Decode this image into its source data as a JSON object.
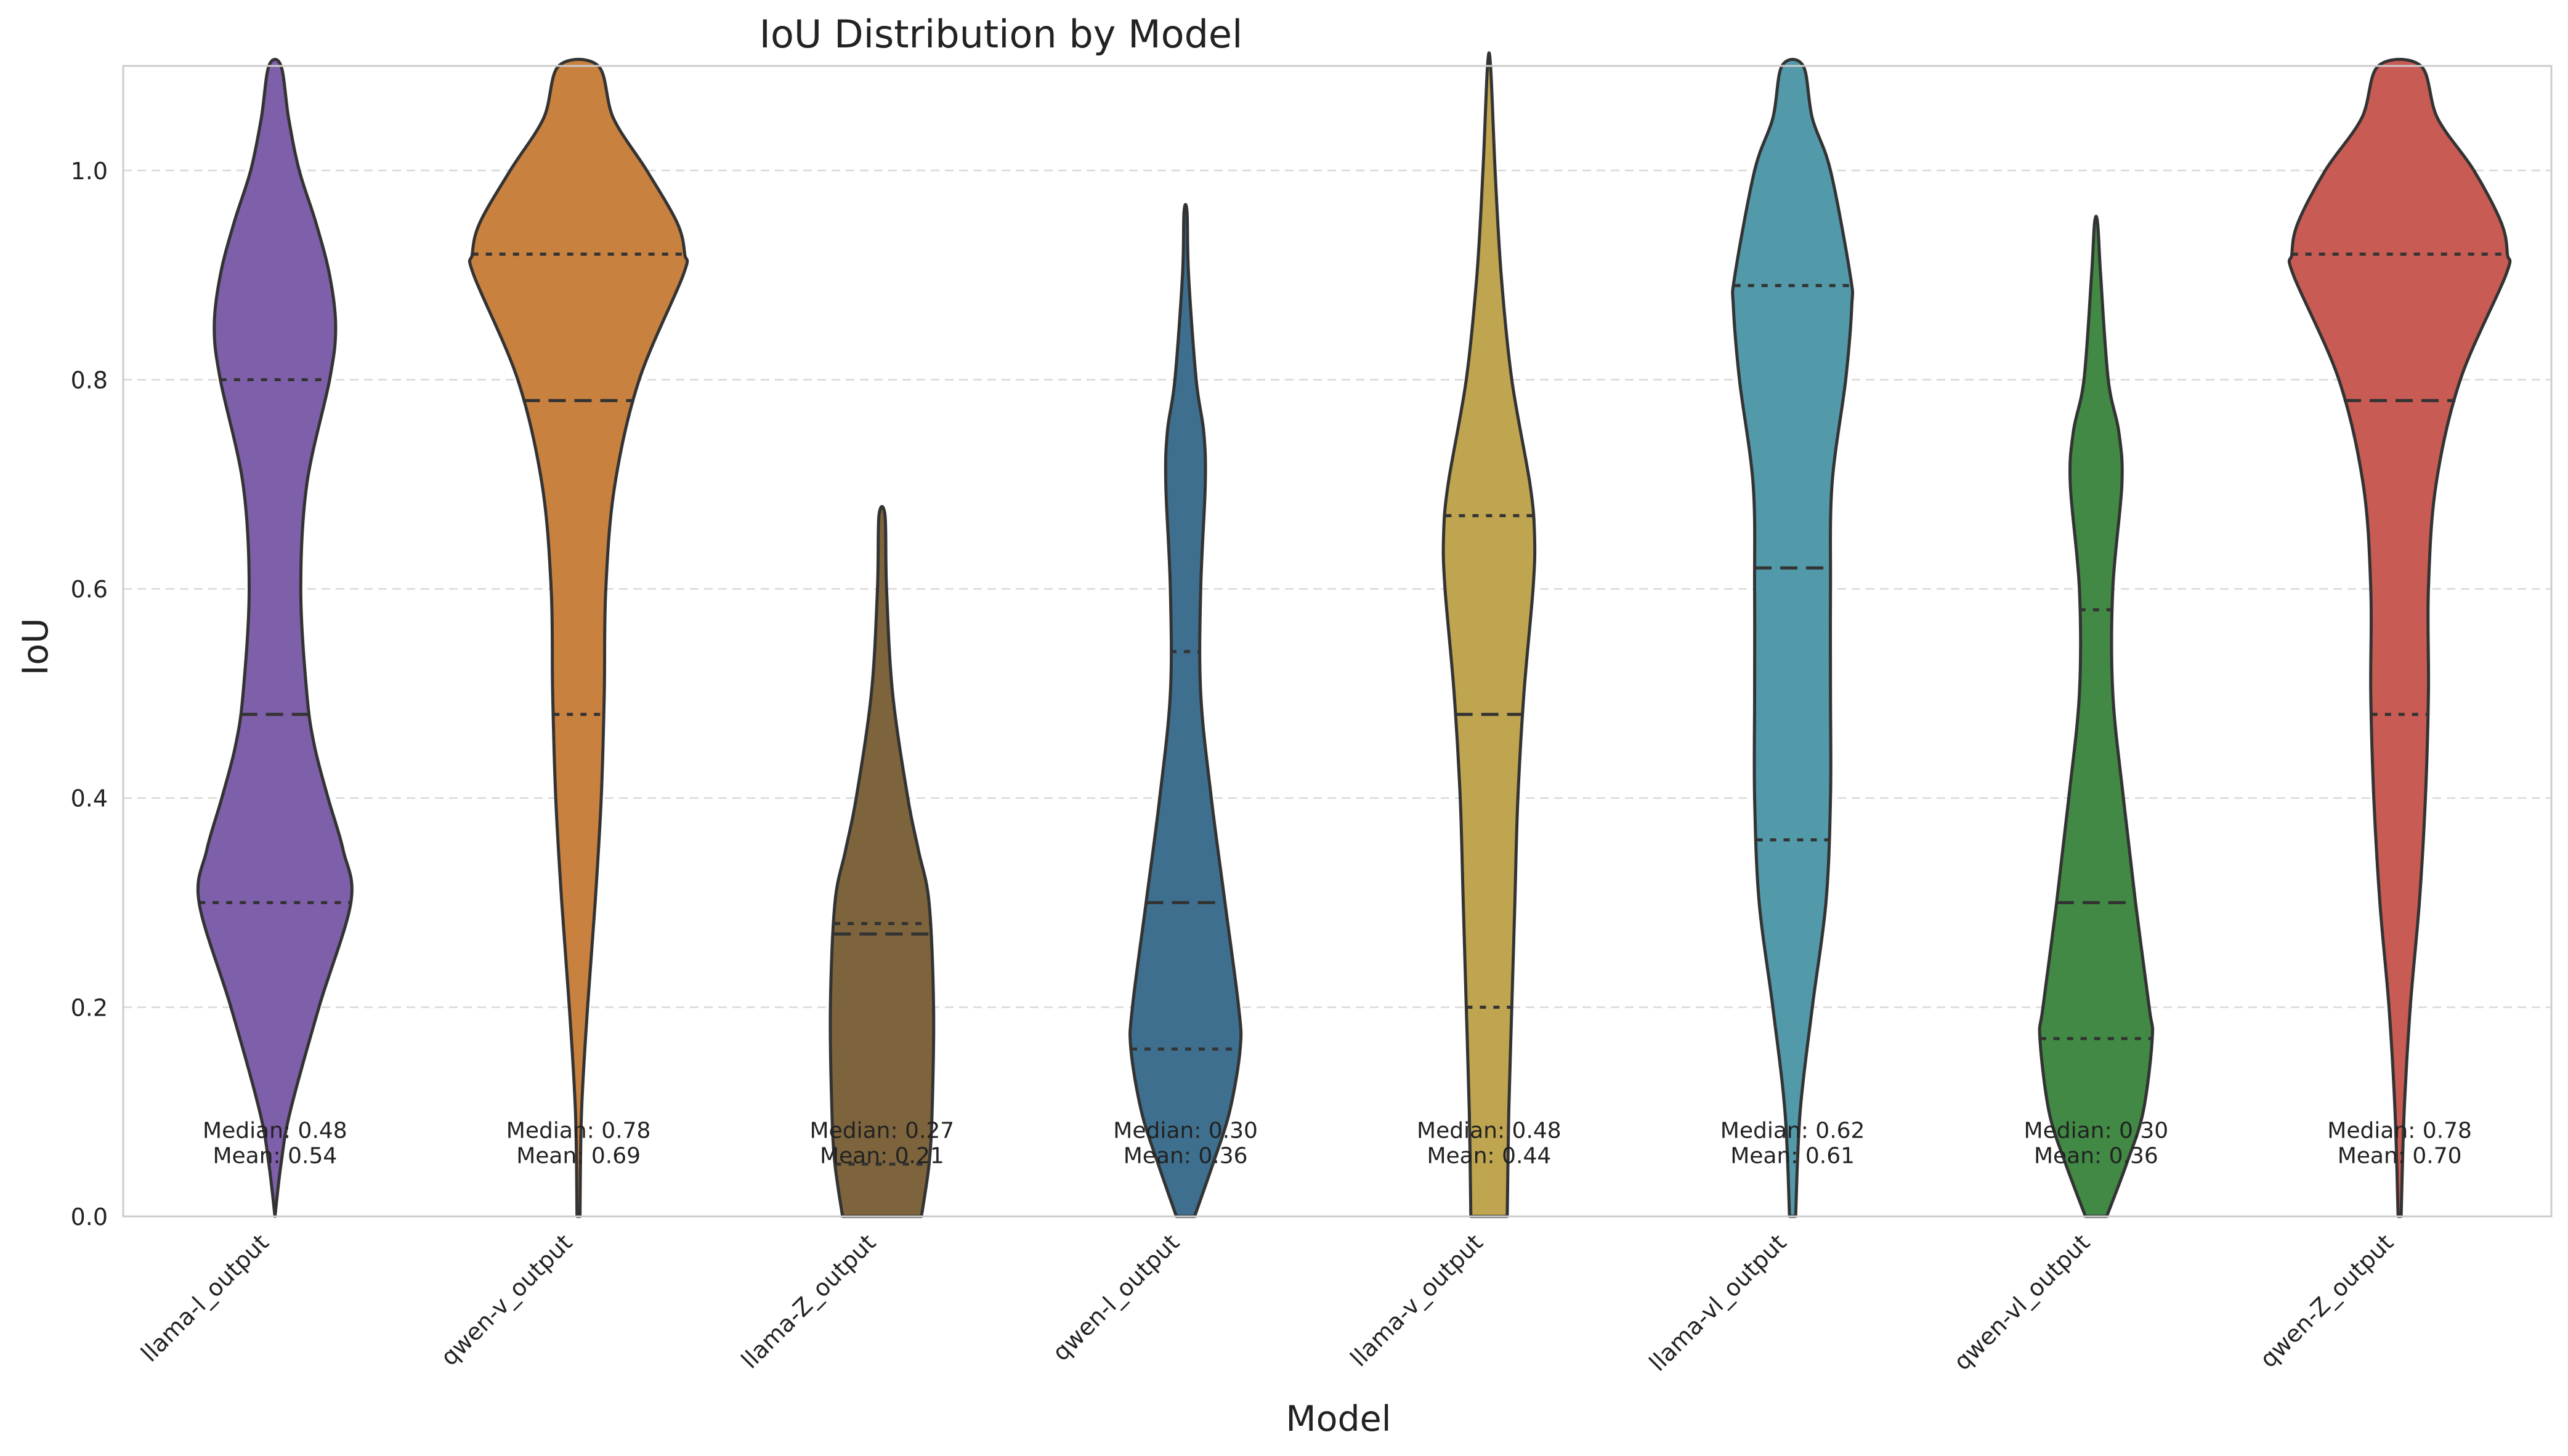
{
  "chart_data": {
    "type": "violin",
    "title": "IoU Distribution by Model",
    "xlabel": "Model",
    "ylabel": "IoU",
    "ylim": [
      0,
      1.1
    ],
    "yticks": [
      0.0,
      0.2,
      0.4,
      0.6,
      0.8,
      1.0
    ],
    "ytick_labels": [
      "0.0",
      "0.2",
      "0.4",
      "0.6",
      "0.8",
      "1.0"
    ],
    "grid": "y-dashed",
    "inner": "quartile",
    "categories": [
      "llama-l_output",
      "qwen-v_output",
      "llama-Z_output",
      "qwen-l_output",
      "llama-v_output",
      "llama-vl_output",
      "qwen-vl_output",
      "qwen-Z_output"
    ],
    "series": [
      {
        "category": "llama-l_output",
        "color": "#7e5fa9",
        "quartiles": [
          0.3,
          0.48,
          0.8
        ],
        "median_label": "Median: 0.48",
        "mean_label": "Mean: 0.54",
        "profile": [
          [
            0.0,
            0.0
          ],
          [
            0.05,
            0.04
          ],
          [
            0.1,
            0.1
          ],
          [
            0.2,
            0.29
          ],
          [
            0.3,
            0.5
          ],
          [
            0.35,
            0.45
          ],
          [
            0.4,
            0.35
          ],
          [
            0.45,
            0.26
          ],
          [
            0.5,
            0.21
          ],
          [
            0.6,
            0.17
          ],
          [
            0.7,
            0.21
          ],
          [
            0.8,
            0.36
          ],
          [
            0.85,
            0.4
          ],
          [
            0.9,
            0.36
          ],
          [
            0.95,
            0.27
          ],
          [
            1.0,
            0.16
          ],
          [
            1.05,
            0.09
          ],
          [
            1.1,
            0.04
          ]
        ]
      },
      {
        "category": "qwen-v_output",
        "color": "#c9813f",
        "quartiles": [
          0.48,
          0.78,
          0.92
        ],
        "median_label": "Median: 0.78",
        "mean_label": "Mean: 0.69",
        "profile": [
          [
            0.0,
            0.01
          ],
          [
            0.1,
            0.02
          ],
          [
            0.2,
            0.06
          ],
          [
            0.3,
            0.11
          ],
          [
            0.4,
            0.15
          ],
          [
            0.5,
            0.17
          ],
          [
            0.6,
            0.18
          ],
          [
            0.7,
            0.24
          ],
          [
            0.8,
            0.4
          ],
          [
            0.9,
            0.69
          ],
          [
            0.92,
            0.7
          ],
          [
            0.95,
            0.65
          ],
          [
            1.0,
            0.45
          ],
          [
            1.05,
            0.23
          ],
          [
            1.1,
            0.13
          ]
        ]
      },
      {
        "category": "llama-Z_output",
        "color": "#7d643d",
        "quartiles": [
          0.05,
          0.27,
          0.28
        ],
        "median_label": "Median: 0.27",
        "mean_label": "Mean: 0.21",
        "profile": [
          [
            0.0,
            0.26
          ],
          [
            0.05,
            0.31
          ],
          [
            0.1,
            0.33
          ],
          [
            0.2,
            0.34
          ],
          [
            0.3,
            0.31
          ],
          [
            0.35,
            0.24
          ],
          [
            0.4,
            0.17
          ],
          [
            0.5,
            0.07
          ],
          [
            0.6,
            0.03
          ],
          [
            0.67,
            0.02
          ]
        ]
      },
      {
        "category": "qwen-l_output",
        "color": "#3e6f8e",
        "quartiles": [
          0.16,
          0.3,
          0.54
        ],
        "median_label": "Median: 0.30",
        "mean_label": "Mean: 0.36",
        "profile": [
          [
            0.0,
            0.06
          ],
          [
            0.05,
            0.18
          ],
          [
            0.1,
            0.29
          ],
          [
            0.16,
            0.36
          ],
          [
            0.2,
            0.35
          ],
          [
            0.3,
            0.26
          ],
          [
            0.4,
            0.17
          ],
          [
            0.5,
            0.1
          ],
          [
            0.6,
            0.1
          ],
          [
            0.7,
            0.13
          ],
          [
            0.75,
            0.12
          ],
          [
            0.8,
            0.07
          ],
          [
            0.9,
            0.02
          ],
          [
            0.96,
            0.01
          ]
        ]
      },
      {
        "category": "llama-v_output",
        "color": "#bfa550",
        "quartiles": [
          0.2,
          0.48,
          0.67
        ],
        "median_label": "Median: 0.48",
        "mean_label": "Mean: 0.44",
        "profile": [
          [
            0.0,
            0.12
          ],
          [
            0.1,
            0.13
          ],
          [
            0.2,
            0.15
          ],
          [
            0.3,
            0.17
          ],
          [
            0.4,
            0.19
          ],
          [
            0.5,
            0.23
          ],
          [
            0.6,
            0.29
          ],
          [
            0.65,
            0.3
          ],
          [
            0.7,
            0.27
          ],
          [
            0.8,
            0.15
          ],
          [
            0.9,
            0.08
          ],
          [
            1.0,
            0.04
          ],
          [
            1.1,
            0.01
          ]
        ]
      },
      {
        "category": "llama-vl_output",
        "color": "#5299aa",
        "quartiles": [
          0.36,
          0.62,
          0.89
        ],
        "median_label": "Median: 0.62",
        "mean_label": "Mean: 0.61",
        "profile": [
          [
            0.0,
            0.02
          ],
          [
            0.1,
            0.05
          ],
          [
            0.2,
            0.13
          ],
          [
            0.3,
            0.22
          ],
          [
            0.4,
            0.25
          ],
          [
            0.5,
            0.25
          ],
          [
            0.6,
            0.25
          ],
          [
            0.7,
            0.26
          ],
          [
            0.8,
            0.35
          ],
          [
            0.87,
            0.39
          ],
          [
            0.9,
            0.38
          ],
          [
            1.0,
            0.25
          ],
          [
            1.05,
            0.13
          ],
          [
            1.1,
            0.07
          ]
        ]
      },
      {
        "category": "qwen-vl_output",
        "color": "#418944",
        "quartiles": [
          0.17,
          0.3,
          0.58
        ],
        "median_label": "Median: 0.30",
        "mean_label": "Mean: 0.36",
        "profile": [
          [
            0.0,
            0.07
          ],
          [
            0.05,
            0.2
          ],
          [
            0.1,
            0.31
          ],
          [
            0.17,
            0.37
          ],
          [
            0.2,
            0.35
          ],
          [
            0.3,
            0.26
          ],
          [
            0.4,
            0.18
          ],
          [
            0.5,
            0.11
          ],
          [
            0.6,
            0.11
          ],
          [
            0.7,
            0.17
          ],
          [
            0.75,
            0.15
          ],
          [
            0.8,
            0.08
          ],
          [
            0.9,
            0.03
          ],
          [
            0.95,
            0.01
          ]
        ]
      },
      {
        "category": "qwen-Z_output",
        "color": "#c85b53",
        "quartiles": [
          0.48,
          0.78,
          0.92
        ],
        "median_label": "Median: 0.78",
        "mean_label": "Mean: 0.70",
        "profile": [
          [
            0.0,
            0.01
          ],
          [
            0.1,
            0.03
          ],
          [
            0.2,
            0.07
          ],
          [
            0.3,
            0.13
          ],
          [
            0.4,
            0.17
          ],
          [
            0.5,
            0.19
          ],
          [
            0.6,
            0.19
          ],
          [
            0.7,
            0.24
          ],
          [
            0.8,
            0.4
          ],
          [
            0.9,
            0.7
          ],
          [
            0.92,
            0.71
          ],
          [
            0.95,
            0.67
          ],
          [
            1.0,
            0.49
          ],
          [
            1.05,
            0.25
          ],
          [
            1.1,
            0.14
          ]
        ]
      }
    ]
  }
}
